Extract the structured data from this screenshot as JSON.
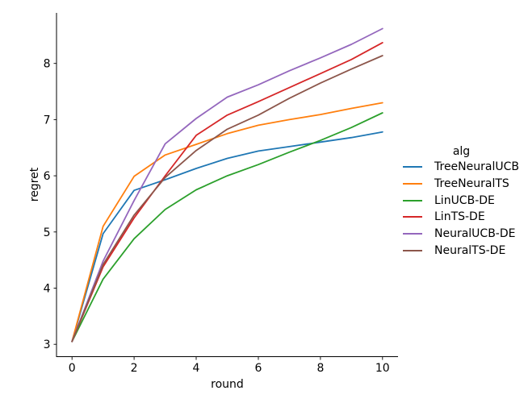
{
  "chart_data": {
    "type": "line",
    "title": "",
    "xlabel": "round",
    "ylabel": "regret",
    "legend_title": "alg",
    "legend_position": "right-outside",
    "grid": false,
    "x": [
      0,
      1,
      2,
      3,
      4,
      5,
      6,
      7,
      8,
      9,
      10
    ],
    "xticks": [
      0,
      2,
      4,
      6,
      8,
      10
    ],
    "yticks": [
      3,
      4,
      5,
      6,
      7,
      8
    ],
    "xlim": [
      -0.5,
      10.5
    ],
    "ylim": [
      2.78,
      8.9
    ],
    "series": [
      {
        "name": "TreeNeuralUCB",
        "color": "#1f77b4",
        "values": [
          3.05,
          4.97,
          5.74,
          5.93,
          6.13,
          6.31,
          6.44,
          6.52,
          6.6,
          6.68,
          6.78
        ]
      },
      {
        "name": "TreeNeuralTS",
        "color": "#ff7f0e",
        "values": [
          3.05,
          5.1,
          5.99,
          6.37,
          6.56,
          6.75,
          6.9,
          7.0,
          7.09,
          7.2,
          7.3
        ]
      },
      {
        "name": "LinUCB-DE",
        "color": "#2ca02c",
        "values": [
          3.05,
          4.16,
          4.88,
          5.4,
          5.75,
          6.0,
          6.2,
          6.42,
          6.63,
          6.86,
          7.12
        ]
      },
      {
        "name": "LinTS-DE",
        "color": "#d62728",
        "values": [
          3.05,
          4.38,
          5.25,
          6.0,
          6.72,
          7.08,
          7.32,
          7.57,
          7.82,
          8.07,
          8.37
        ]
      },
      {
        "name": "NeuralUCB-DE",
        "color": "#9467bd",
        "values": [
          3.05,
          4.48,
          5.56,
          6.57,
          7.02,
          7.4,
          7.62,
          7.87,
          8.1,
          8.34,
          8.62
        ]
      },
      {
        "name": "NeuralTS-DE",
        "color": "#8c564b",
        "values": [
          3.05,
          4.42,
          5.3,
          5.97,
          6.45,
          6.83,
          7.08,
          7.38,
          7.65,
          7.9,
          8.14
        ]
      }
    ]
  }
}
